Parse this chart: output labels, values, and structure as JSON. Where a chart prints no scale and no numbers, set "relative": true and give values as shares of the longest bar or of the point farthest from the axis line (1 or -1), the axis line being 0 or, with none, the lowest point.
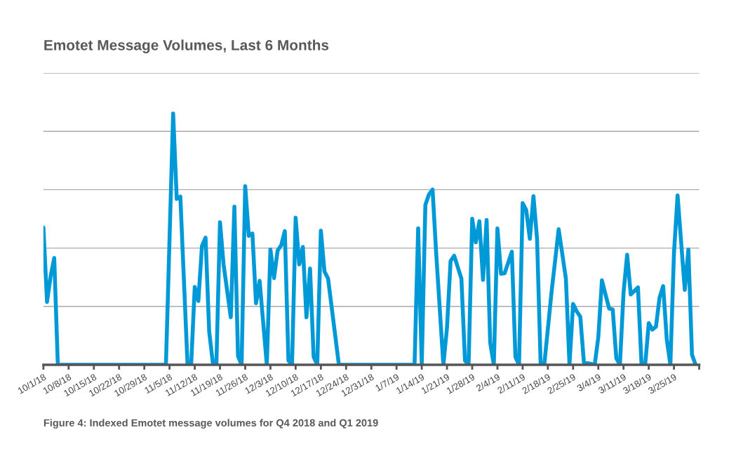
{
  "chart_data": {
    "type": "line",
    "title": "Emotet Message Volumes, Last 6 Months",
    "relative": true,
    "grid": "y",
    "marker": "none",
    "line_style": "solid",
    "annotations": [
      "Figure 4: Indexed Emotet message volumes for Q4 2018 and Q1 2019"
    ],
    "xlim": [
      "2018-10-01",
      "2019-04-01"
    ],
    "xticks": [
      {
        "value": "2018-10-01",
        "label": "10/1/18"
      },
      {
        "value": "2018-10-08",
        "label": "10/8/18"
      },
      {
        "value": "2018-10-15",
        "label": "10/15/18"
      },
      {
        "value": "2018-10-22",
        "label": "10/22/18"
      },
      {
        "value": "2018-10-29",
        "label": "10/29/18"
      },
      {
        "value": "2018-11-05",
        "label": "11/5/18"
      },
      {
        "value": "2018-11-12",
        "label": "11/12/18"
      },
      {
        "value": "2018-11-19",
        "label": "11/19/18"
      },
      {
        "value": "2018-11-26",
        "label": "11/26/18"
      },
      {
        "value": "2018-12-03",
        "label": "12/3/18"
      },
      {
        "value": "2018-12-10",
        "label": "12/10/18"
      },
      {
        "value": "2018-12-17",
        "label": "12/17/18"
      },
      {
        "value": "2018-12-24",
        "label": "12/24/18"
      },
      {
        "value": "2018-12-31",
        "label": "12/31/18"
      },
      {
        "value": "2019-01-07",
        "label": "1/7/19"
      },
      {
        "value": "2019-01-14",
        "label": "1/14/19"
      },
      {
        "value": "2019-01-21",
        "label": "1/21/19"
      },
      {
        "value": "2019-01-28",
        "label": "1/28/19"
      },
      {
        "value": "2019-02-04",
        "label": "2/4/19"
      },
      {
        "value": "2019-02-11",
        "label": "2/11/19"
      },
      {
        "value": "2019-02-18",
        "label": "2/18/19"
      },
      {
        "value": "2019-02-25",
        "label": "2/25/19"
      },
      {
        "value": "2019-03-04",
        "label": "3/4/19"
      },
      {
        "value": "2019-03-11",
        "label": "3/11/19"
      },
      {
        "value": "2019-03-18",
        "label": "3/18/19"
      },
      {
        "value": "2019-03-25",
        "label": "3/25/19"
      },
      {
        "value": "2019-04-01",
        "label": null
      }
    ],
    "x": [
      "2018-10-01",
      "2018-10-02",
      "2018-10-03",
      "2018-10-04",
      "2018-10-05",
      "2018-11-04",
      "2018-11-06",
      "2018-11-07",
      "2018-11-08",
      "2018-11-10",
      "2018-11-11",
      "2018-11-12",
      "2018-11-13",
      "2018-11-14",
      "2018-11-15",
      "2018-11-16",
      "2018-11-17",
      "2018-11-18",
      "2018-11-19",
      "2018-11-20",
      "2018-11-22",
      "2018-11-23",
      "2018-11-24",
      "2018-11-25",
      "2018-11-26",
      "2018-11-27",
      "2018-11-28",
      "2018-11-29",
      "2018-11-30",
      "2018-12-02",
      "2018-12-03",
      "2018-12-04",
      "2018-12-05",
      "2018-12-06",
      "2018-12-07",
      "2018-12-08",
      "2018-12-09",
      "2018-12-10",
      "2018-12-11",
      "2018-12-12",
      "2018-12-13",
      "2018-12-14",
      "2018-12-15",
      "2018-12-16",
      "2018-12-17",
      "2018-12-18",
      "2018-12-19",
      "2018-12-22",
      "2019-01-12",
      "2019-01-13",
      "2019-01-14",
      "2019-01-15",
      "2019-01-16",
      "2019-01-17",
      "2019-01-18",
      "2019-01-20",
      "2019-01-21",
      "2019-01-22",
      "2019-01-23",
      "2019-01-25",
      "2019-01-26",
      "2019-01-27",
      "2019-01-28",
      "2019-01-29",
      "2019-01-30",
      "2019-01-31",
      "2019-02-01",
      "2019-02-02",
      "2019-02-03",
      "2019-02-04",
      "2019-02-05",
      "2019-02-06",
      "2019-02-08",
      "2019-02-09",
      "2019-02-10",
      "2019-02-11",
      "2019-02-12",
      "2019-02-13",
      "2019-02-14",
      "2019-02-15",
      "2019-02-16",
      "2019-02-17",
      "2019-02-19",
      "2019-02-21",
      "2019-02-23",
      "2019-02-24",
      "2019-02-25",
      "2019-02-26",
      "2019-02-27",
      "2019-02-28",
      "2019-03-03",
      "2019-03-04",
      "2019-03-05",
      "2019-03-07",
      "2019-03-08",
      "2019-03-09",
      "2019-03-10",
      "2019-03-11",
      "2019-03-12",
      "2019-03-13",
      "2019-03-15",
      "2019-03-16",
      "2019-03-17",
      "2019-03-18",
      "2019-03-19",
      "2019-03-20",
      "2019-03-21",
      "2019-03-22",
      "2019-03-23",
      "2019-03-24",
      "2019-03-25",
      "2019-03-26",
      "2019-03-28",
      "2019-03-29",
      "2019-03-30",
      "2019-03-31"
    ],
    "series": [
      {
        "color": "#0099d8",
        "values": [
          0.546,
          0.25,
          0.353,
          0.425,
          0,
          0,
          1.0,
          0.66,
          0.669,
          0,
          0,
          0.31,
          0.254,
          0.473,
          0.506,
          0.133,
          0.01,
          0,
          0.567,
          0.399,
          0.189,
          0.629,
          0.035,
          0,
          0.711,
          0.513,
          0.522,
          0.245,
          0.334,
          0,
          0.459,
          0.345,
          0.455,
          0.476,
          0.532,
          0.017,
          0,
          0.585,
          0.399,
          0.469,
          0.189,
          0.383,
          0.031,
          0,
          0.534,
          0.371,
          0.343,
          0,
          0,
          0.543,
          0,
          0.636,
          0.678,
          0.697,
          0.445,
          0,
          0.147,
          0.413,
          0.434,
          0.343,
          0.017,
          0,
          0.581,
          0.487,
          0.571,
          0.338,
          0.576,
          0.087,
          0,
          0.543,
          0.362,
          0.364,
          0.45,
          0.031,
          0,
          0.643,
          0.615,
          0.501,
          0.671,
          0.501,
          0,
          0,
          0.287,
          0.539,
          0.343,
          0,
          0.242,
          0.213,
          0.191,
          0.01,
          0,
          0.11,
          0.336,
          0.224,
          0.22,
          0.026,
          0,
          0.287,
          0.438,
          0.28,
          0.308,
          0,
          0,
          0.166,
          0.14,
          0.152,
          0.268,
          0.313,
          0.101,
          0,
          0.445,
          0.674,
          0.298,
          0.459,
          0.04,
          0
        ]
      }
    ]
  }
}
